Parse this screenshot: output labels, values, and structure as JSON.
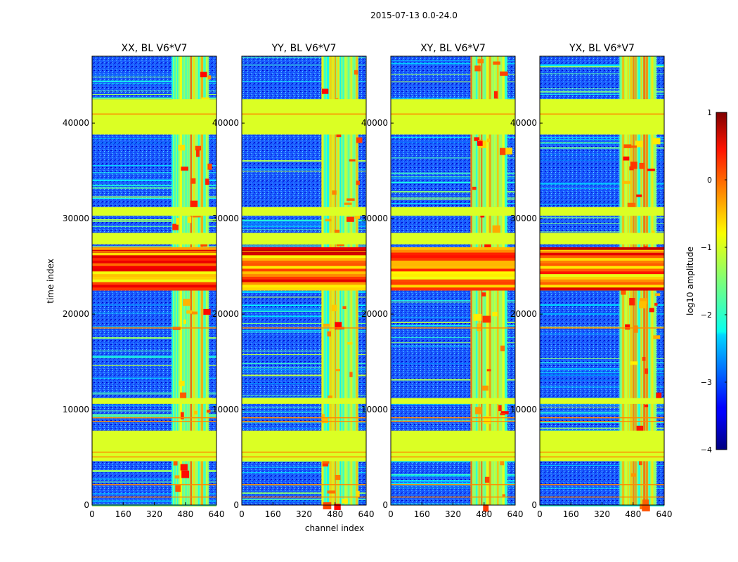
{
  "suptitle": "2015-07-13 0.0-24.0",
  "chart_data": {
    "type": "heatmap",
    "xlabel": "channel index",
    "ylabel": "time index",
    "xlim": [
      0,
      640
    ],
    "ylim": [
      0,
      47000
    ],
    "xticks": [
      "0",
      "160",
      "320",
      "480",
      "640"
    ],
    "yticks": [
      "0",
      "10000",
      "20000",
      "30000",
      "40000"
    ],
    "colorbar": {
      "label": "log10 amplitude",
      "ticks": [
        "1",
        "0",
        "−1",
        "−2",
        "−3",
        "−4"
      ],
      "range": [
        -4,
        1
      ],
      "colormap": "jet"
    },
    "panels": [
      {
        "title": "XX, BL V6*V7",
        "pol": "XX"
      },
      {
        "title": "YY, BL V6*V7",
        "pol": "YY"
      },
      {
        "title": "XY, BL V6*V7",
        "pol": "XY"
      },
      {
        "title": "YX, BL V6*V7",
        "pol": "YX"
      }
    ],
    "flagged_time_bands": [
      [
        4600,
        7800
      ],
      [
        10600,
        11200
      ],
      [
        27300,
        28500
      ],
      [
        30300,
        31200
      ],
      [
        38800,
        42500
      ]
    ],
    "rfi_channel_band": [
      410,
      600
    ],
    "strong_rfi_time_band": [
      22500,
      27000
    ],
    "baseline_log_amplitude": -2.6
  }
}
